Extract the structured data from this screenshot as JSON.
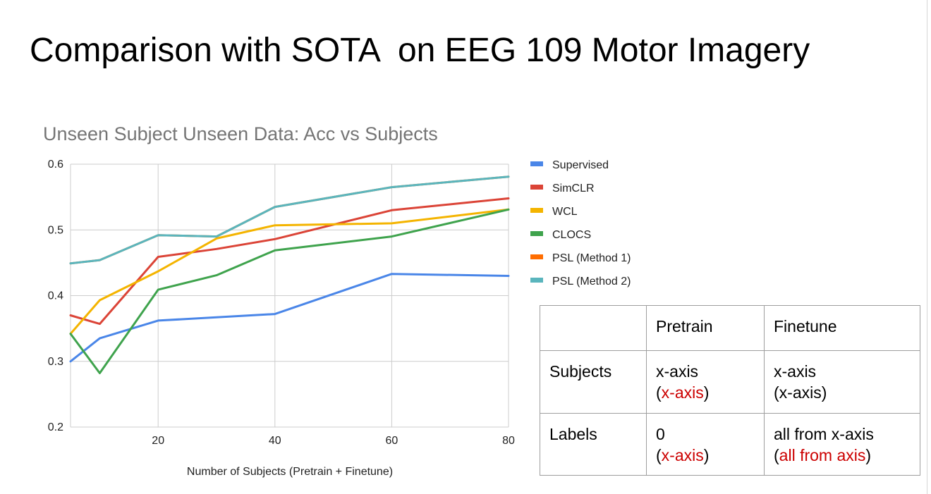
{
  "slide": {
    "title": "Comparison with SOTA  on EEG 109 Motor Imagery"
  },
  "chart_data": {
    "type": "line",
    "title": "Unseen Subject Unseen Data: Acc vs Subjects",
    "xlabel": "Number of Subjects (Pretrain + Finetune)",
    "ylabel": "",
    "x": [
      5,
      10,
      20,
      30,
      40,
      60,
      80
    ],
    "xlim": [
      5,
      80
    ],
    "ylim": [
      0.2,
      0.6
    ],
    "xticks": [
      20,
      40,
      60,
      80
    ],
    "yticks": [
      0.2,
      0.3,
      0.4,
      0.5,
      0.6
    ],
    "grid": true,
    "legend_position": "right",
    "series": [
      {
        "name": "Supervised",
        "color": "#4a86e8",
        "values": [
          0.3,
          0.335,
          0.362,
          0.367,
          0.372,
          0.433,
          0.43
        ]
      },
      {
        "name": "SimCLR",
        "color": "#db4437",
        "values": [
          0.37,
          0.357,
          0.459,
          0.471,
          0.486,
          0.53,
          0.548
        ]
      },
      {
        "name": "WCL",
        "color": "#f4b400",
        "values": [
          0.342,
          0.393,
          0.437,
          0.487,
          0.507,
          0.51,
          0.531
        ]
      },
      {
        "name": "CLOCS",
        "color": "#3fa34d",
        "values": [
          0.342,
          0.282,
          0.409,
          0.431,
          0.469,
          0.49,
          0.531
        ]
      },
      {
        "name": "PSL (Method 1)",
        "color": "#ff6d01",
        "values": [
          0.449,
          0.454,
          0.492,
          0.49,
          0.535,
          0.565,
          0.581
        ]
      },
      {
        "name": "PSL (Method 2)",
        "color": "#5ab5bd",
        "values": [
          0.449,
          0.454,
          0.492,
          0.49,
          0.535,
          0.565,
          0.581
        ]
      }
    ]
  },
  "table": {
    "headers": [
      "",
      "Pretrain",
      "Finetune"
    ],
    "rows": [
      {
        "label": "Subjects",
        "pretrain": {
          "text": "x-axis",
          "paren": "x-axis",
          "paren_color": "red"
        },
        "finetune": {
          "text": "x-axis",
          "paren": "x-axis",
          "paren_color": "black"
        }
      },
      {
        "label": "Labels",
        "pretrain": {
          "text": "0",
          "paren": "x-axis",
          "paren_color": "red"
        },
        "finetune": {
          "text": "all from x-axis",
          "paren": "all from axis",
          "paren_color": "red"
        }
      }
    ],
    "open_paren": "(",
    "close_paren": ")"
  }
}
